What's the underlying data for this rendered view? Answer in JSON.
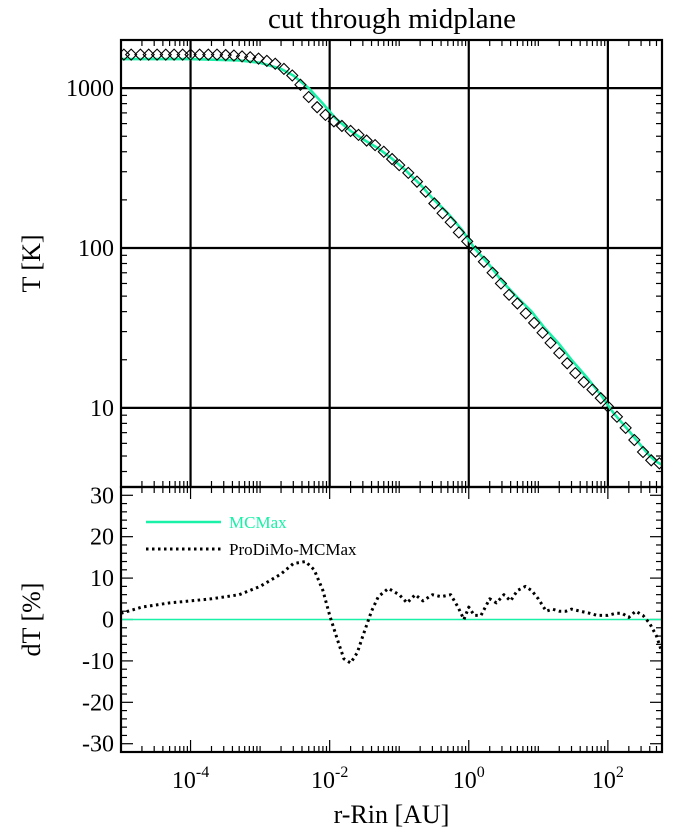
{
  "chart_data": [
    {
      "type": "line",
      "title": "cut through midplane",
      "xlabel": "",
      "ylabel": "T [K]",
      "x_scale": "log",
      "y_scale": "log",
      "xlim": [
        1e-05,
        600
      ],
      "ylim": [
        3.2,
        2000
      ],
      "grid": true,
      "x_tick_values": [
        0.0001,
        0.01,
        1,
        100
      ],
      "y_tick_values": [
        10,
        100,
        1000
      ],
      "y_tick_labels": [
        "10",
        "100",
        "1000"
      ],
      "series": [
        {
          "style": "solid",
          "color": "#19f0a8",
          "x": [
            1e-05,
            0.0001,
            0.0005,
            0.001,
            0.002,
            0.003,
            0.005,
            0.008,
            0.012,
            0.02,
            0.03,
            0.05,
            0.08,
            0.12,
            0.2,
            0.3,
            0.5,
            0.8,
            1.2,
            2,
            3,
            5,
            8,
            12,
            20,
            30,
            50,
            80,
            120,
            200,
            300,
            400,
            500,
            600
          ],
          "y": [
            1520,
            1520,
            1490,
            1440,
            1320,
            1200,
            1000,
            800,
            650,
            540,
            480,
            420,
            360,
            310,
            250,
            205,
            165,
            130,
            100,
            78,
            62,
            49,
            40,
            32,
            25,
            20,
            15.5,
            12,
            9.3,
            7.2,
            5.8,
            5,
            4.6,
            4.4
          ]
        },
        {
          "style": "diamond",
          "color": "#000000",
          "x": [
            1.1e-05,
            1.4e-05,
            1.9e-05,
            2.5e-05,
            3.3e-05,
            4.4e-05,
            5.8e-05,
            7.7e-05,
            0.0001,
            0.000135,
            0.00018,
            0.00024,
            0.00032,
            0.00042,
            0.00055,
            0.00072,
            0.00095,
            0.00125,
            0.00165,
            0.0022,
            0.0029,
            0.0038,
            0.005,
            0.0066,
            0.0087,
            0.0115,
            0.015,
            0.02,
            0.026,
            0.034,
            0.045,
            0.06,
            0.079,
            0.1,
            0.135,
            0.18,
            0.24,
            0.32,
            0.42,
            0.55,
            0.72,
            0.95,
            1.25,
            1.65,
            2.2,
            2.9,
            3.8,
            5,
            6.6,
            8.7,
            11.5,
            15,
            20,
            26,
            34,
            45,
            60,
            79,
            100,
            135,
            180,
            240,
            320,
            420,
            550
          ],
          "y": [
            1620,
            1620,
            1620,
            1620,
            1620,
            1620,
            1620,
            1620,
            1620,
            1620,
            1620,
            1620,
            1610,
            1600,
            1580,
            1560,
            1530,
            1480,
            1420,
            1320,
            1200,
            1050,
            880,
            760,
            680,
            620,
            580,
            540,
            510,
            470,
            440,
            400,
            360,
            330,
            295,
            260,
            225,
            190,
            165,
            145,
            125,
            110,
            95,
            82,
            70,
            60,
            51,
            45,
            39,
            34,
            29.5,
            25.5,
            22,
            19,
            16.5,
            14.5,
            13,
            11.5,
            10.2,
            8.8,
            7.5,
            6.3,
            5.3,
            4.7,
            4.5
          ]
        }
      ]
    },
    {
      "type": "line",
      "title": "",
      "xlabel": "r-Rin [AU]",
      "ylabel": "dT [%]",
      "x_scale": "log",
      "y_scale": "linear",
      "xlim": [
        1e-05,
        600
      ],
      "ylim": [
        -32,
        32
      ],
      "grid": false,
      "legend_position": "top-left",
      "x_tick_values": [
        0.0001,
        0.01,
        1,
        100
      ],
      "y_tick_values": [
        -30,
        -20,
        -10,
        0,
        10,
        20,
        30
      ],
      "y_tick_labels": [
        "-30",
        "-20",
        "-10",
        "0",
        "10",
        "20",
        "30"
      ],
      "series": [
        {
          "name": "MCMax",
          "style": "solid",
          "color": "#19f0a8",
          "x": [
            1e-05,
            600
          ],
          "y": [
            0,
            0
          ]
        },
        {
          "name": "ProDiMo-MCMax",
          "style": "dotted",
          "color": "#000000",
          "x": [
            1e-05,
            2e-05,
            5e-05,
            0.0001,
            0.0002,
            0.0005,
            0.001,
            0.002,
            0.003,
            0.0045,
            0.006,
            0.008,
            0.01,
            0.013,
            0.016,
            0.02,
            0.025,
            0.03,
            0.04,
            0.05,
            0.07,
            0.1,
            0.13,
            0.17,
            0.22,
            0.3,
            0.4,
            0.55,
            0.7,
            0.85,
            1,
            1.2,
            1.5,
            2,
            2.5,
            3.2,
            4,
            5,
            6.5,
            8,
            10,
            13,
            16,
            20,
            25,
            30,
            40,
            55,
            70,
            100,
            130,
            160,
            200,
            250,
            320,
            400,
            500,
            600
          ],
          "y": [
            1.5,
            3,
            4,
            4.5,
            5,
            6,
            8,
            11,
            13.5,
            14,
            12,
            7,
            1,
            -5,
            -9.5,
            -10.5,
            -8,
            -4,
            2,
            5.5,
            7.5,
            6,
            4,
            6,
            4.5,
            6,
            5.5,
            6,
            3,
            0,
            3,
            1,
            1,
            5,
            4,
            6,
            4.5,
            7,
            8,
            7,
            5,
            2,
            2.5,
            2,
            2,
            2.5,
            2,
            1.5,
            1,
            1,
            1.5,
            1.5,
            0.5,
            2,
            1,
            -1,
            -4,
            -8
          ]
        }
      ]
    }
  ]
}
